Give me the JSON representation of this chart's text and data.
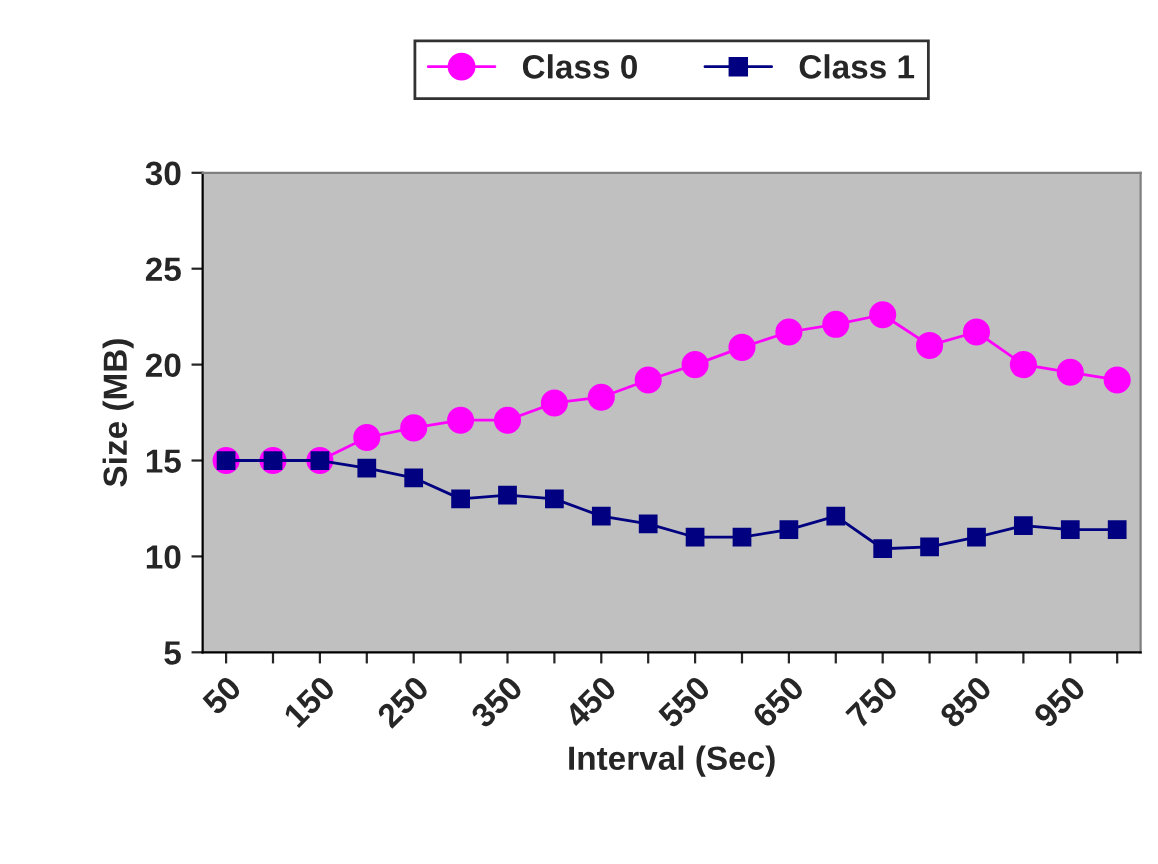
{
  "chart_data": {
    "type": "line",
    "xlabel": "Interval (Sec)",
    "ylabel": "Size (MB)",
    "categories": [
      "50",
      null,
      "150",
      null,
      "250",
      null,
      "350",
      null,
      "450",
      null,
      "550",
      null,
      "650",
      null,
      "750",
      null,
      "850",
      null,
      "950",
      null
    ],
    "series": [
      {
        "name": "Class 0",
        "color": "#ff00ff",
        "marker": "circle",
        "values": [
          15,
          15,
          15,
          16.2,
          16.7,
          17.1,
          17.1,
          18,
          18.3,
          19.2,
          20,
          20.9,
          21.7,
          22.1,
          22.6,
          21,
          21.7,
          20,
          19.6,
          19.2
        ]
      },
      {
        "name": "Class 1",
        "color": "#000080",
        "marker": "square",
        "values": [
          15,
          15,
          15,
          14.6,
          14.1,
          13,
          13.2,
          13,
          12.1,
          11.7,
          11,
          11,
          11.4,
          12.1,
          10.4,
          10.5,
          11,
          11.6,
          11.4,
          11.4
        ]
      }
    ],
    "ylim": [
      5,
      30
    ],
    "yticks": [
      5,
      10,
      15,
      20,
      25,
      30
    ],
    "grid": false,
    "legend": "top"
  }
}
